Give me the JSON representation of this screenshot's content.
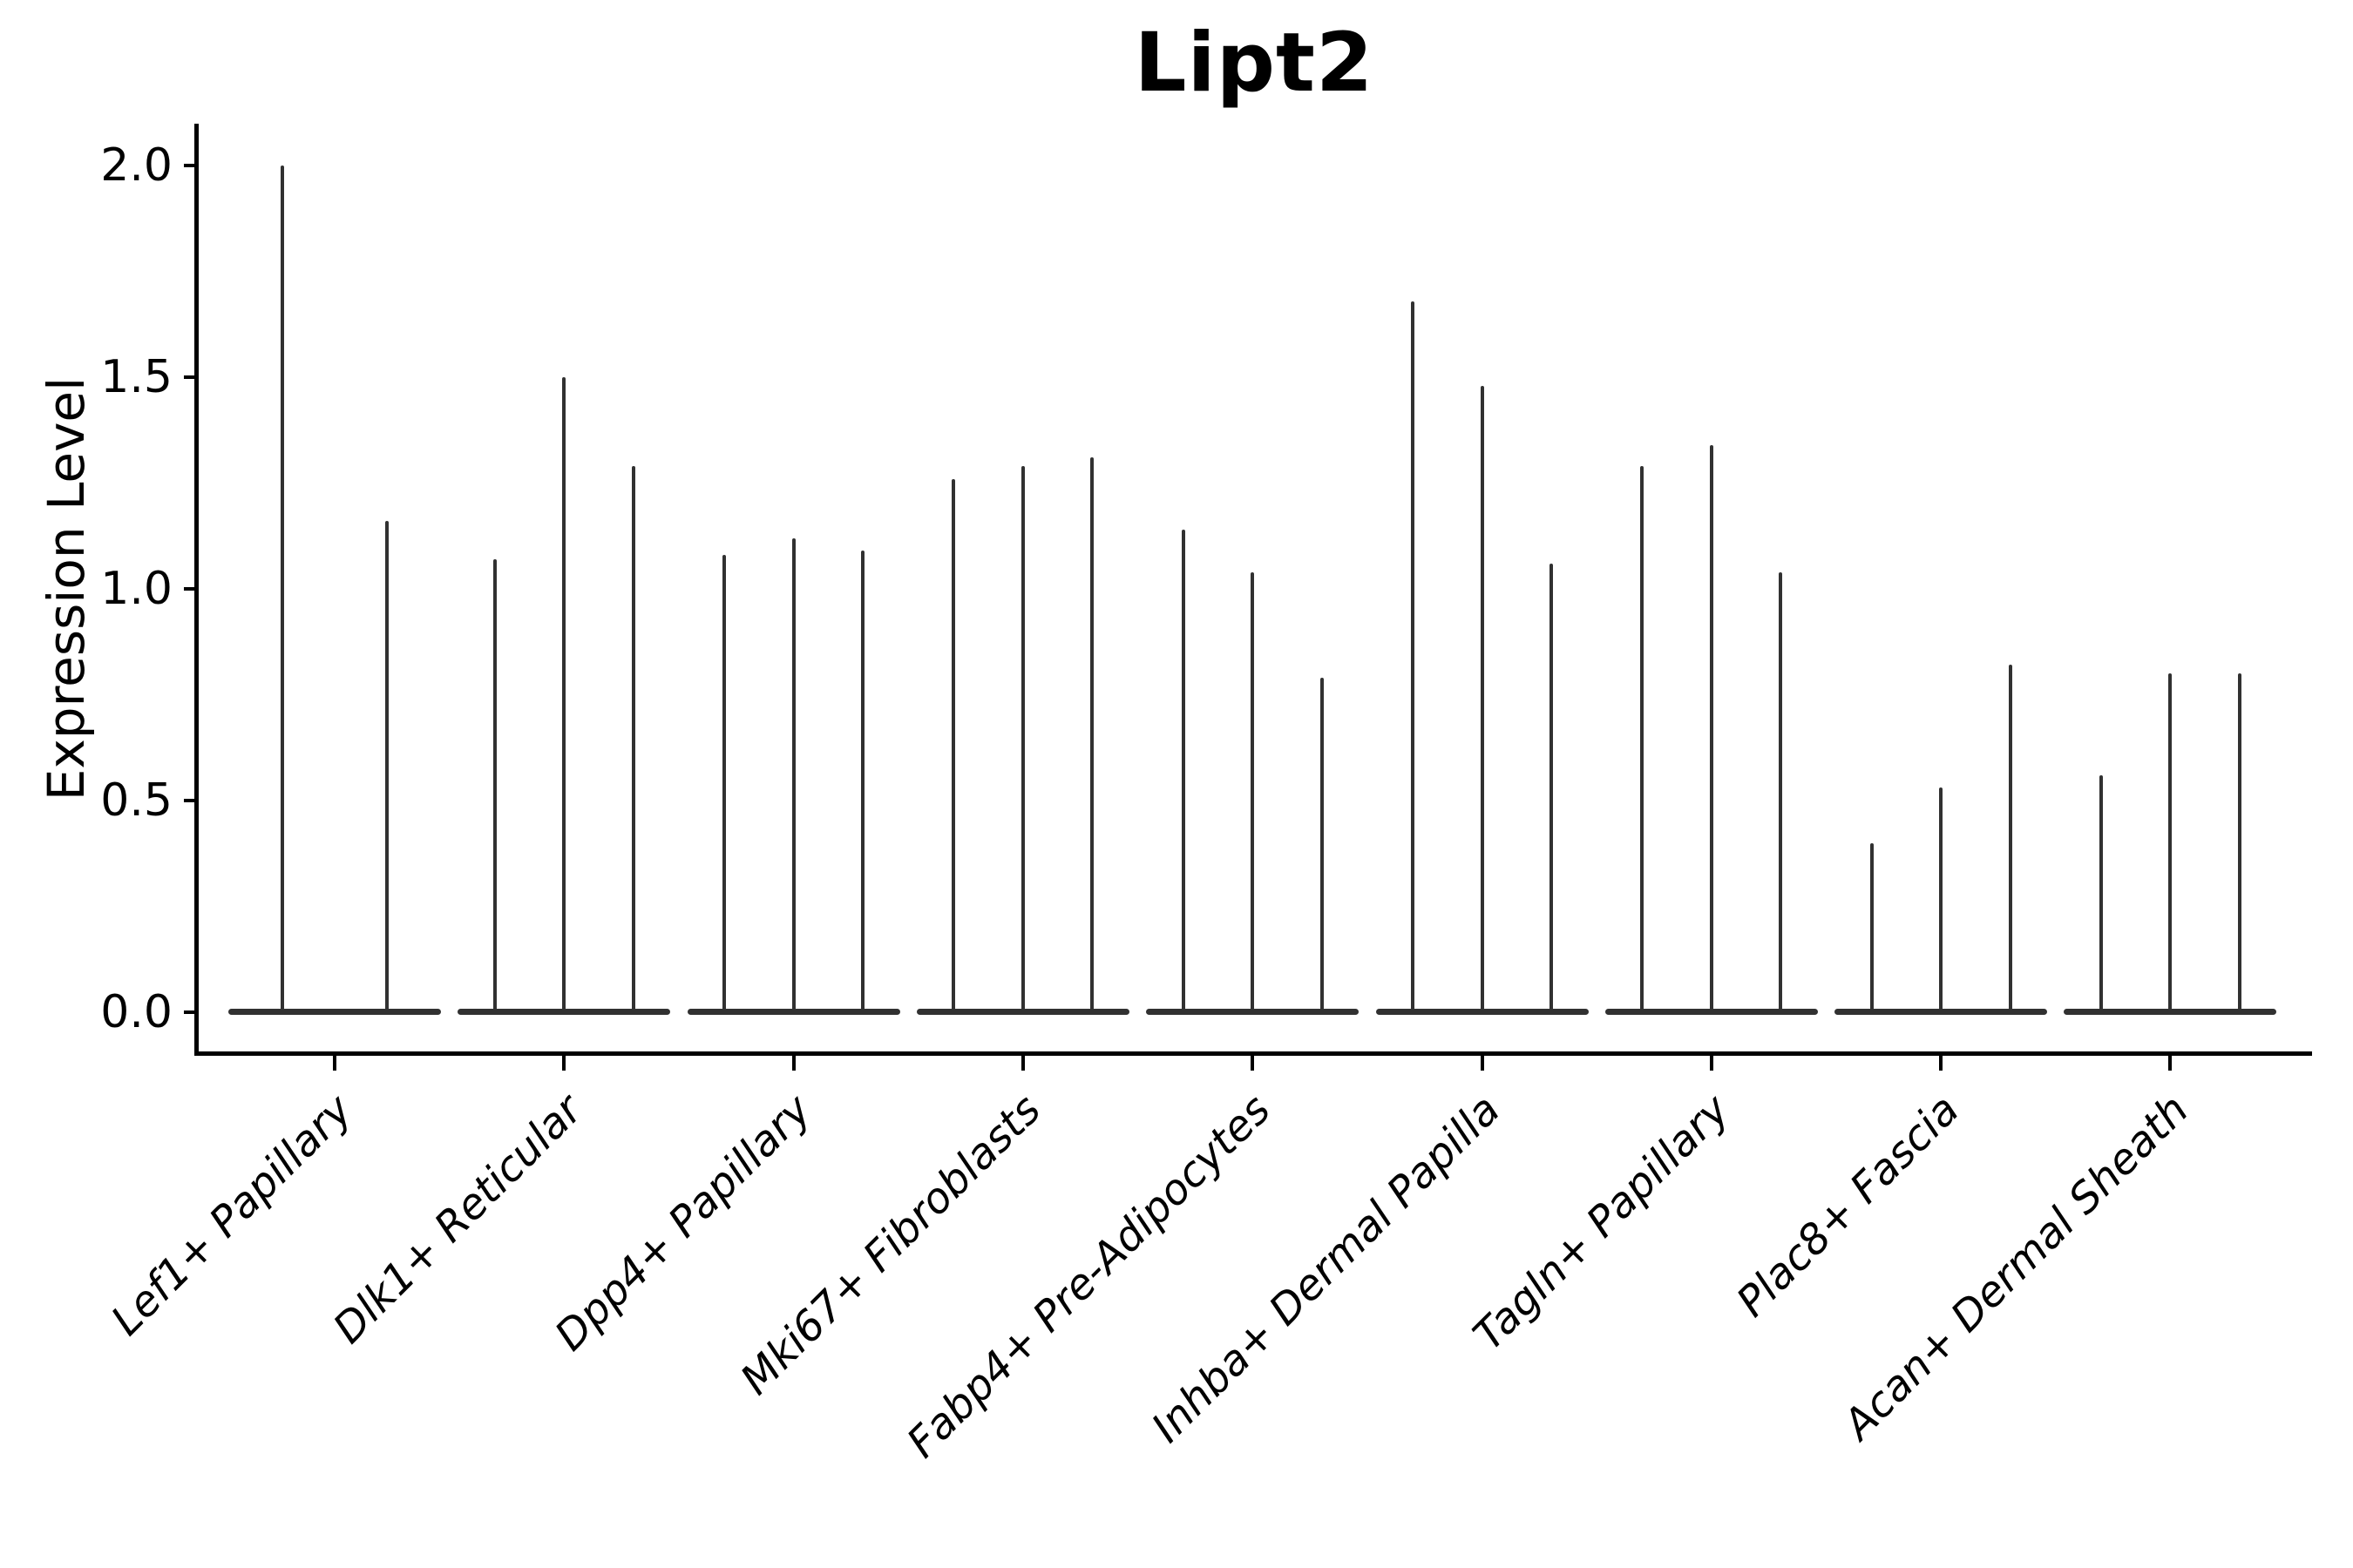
{
  "colors": {
    "background": "#ffffff",
    "violin": "#313131",
    "axis": "#000000",
    "text": "#000000"
  },
  "chart_data": {
    "type": "violin",
    "title": "Lipt2",
    "xlabel": "",
    "ylabel": "Expression Level",
    "ylim": [
      0,
      2.1
    ],
    "grid": false,
    "legend": "none",
    "x_tick_rotation_deg": 45,
    "y_ticks": [
      {
        "value": 2.0,
        "label": "2.0"
      },
      {
        "value": 1.5,
        "label": "1.5"
      },
      {
        "value": 1.0,
        "label": "1.0"
      },
      {
        "value": 0.5,
        "label": "0.5"
      },
      {
        "value": 0.0,
        "label": "0.0"
      }
    ],
    "categories": [
      "Lef1+ Papillary",
      "Dlk1+ Reticular",
      "Dpp4+ Papillary",
      "Mki67+ Fibroblasts",
      "Fabp4+ Pre-Adipocytes",
      "Inhba+ Dermal Papilla",
      "Tagln+ Papillary",
      "Plac8+ Fascia",
      "Acan+ Dermal Sheath"
    ],
    "groups": [
      {
        "category": "Lef1+ Papillary",
        "spike_maxima": [
          2.0,
          1.16
        ]
      },
      {
        "category": "Dlk1+ Reticular",
        "spike_maxima": [
          1.07,
          1.5,
          1.29
        ]
      },
      {
        "category": "Dpp4+ Papillary",
        "spike_maxima": [
          1.08,
          1.12,
          1.09
        ]
      },
      {
        "category": "Mki67+ Fibroblasts",
        "spike_maxima": [
          1.26,
          1.29,
          1.31
        ]
      },
      {
        "category": "Fabp4+ Pre-Adipocytes",
        "spike_maxima": [
          1.14,
          1.04,
          0.79
        ]
      },
      {
        "category": "Inhba+ Dermal Papilla",
        "spike_maxima": [
          1.68,
          1.48,
          1.06
        ]
      },
      {
        "category": "Tagln+ Papillary",
        "spike_maxima": [
          1.29,
          1.34,
          1.04
        ]
      },
      {
        "category": "Plac8+ Fascia",
        "spike_maxima": [
          0.4,
          0.53,
          0.82
        ]
      },
      {
        "category": "Acan+ Dermal Sheath",
        "spike_maxima": [
          0.56,
          0.8,
          0.8
        ]
      }
    ],
    "notes": "Each category shows very thin violins (one per split sample) with a flat wide base at expression 0; spike_maxima are the maximum expression values reached by each violin, left to right."
  }
}
